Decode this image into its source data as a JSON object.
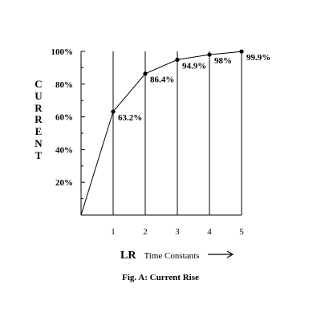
{
  "chart_data": {
    "type": "line",
    "title": "Fig. A: Current Rise",
    "ylabel": "CURRENT",
    "xlabel_main": "LR",
    "xlabel_sub": "Time Constants",
    "x": [
      0,
      1,
      2,
      3,
      4,
      5
    ],
    "y": [
      0,
      63.2,
      86.4,
      94.9,
      98,
      99.9
    ],
    "point_labels": [
      "",
      "63.2%",
      "86.4%",
      "94.9%",
      "98%",
      "99.9%"
    ],
    "xticks": [
      "1",
      "2",
      "3",
      "4",
      "5"
    ],
    "yticks": [
      "20%",
      "40%",
      "60%",
      "80%",
      "100%"
    ],
    "xlim": [
      0,
      5
    ],
    "ylim": [
      0,
      100
    ],
    "vertical_gridlines": true,
    "horizontal_gridlines": false
  },
  "ylabel_letters": [
    "C",
    "U",
    "R",
    "R",
    "E",
    "N",
    "T"
  ],
  "arrow_icon": "long-right-arrow-icon"
}
